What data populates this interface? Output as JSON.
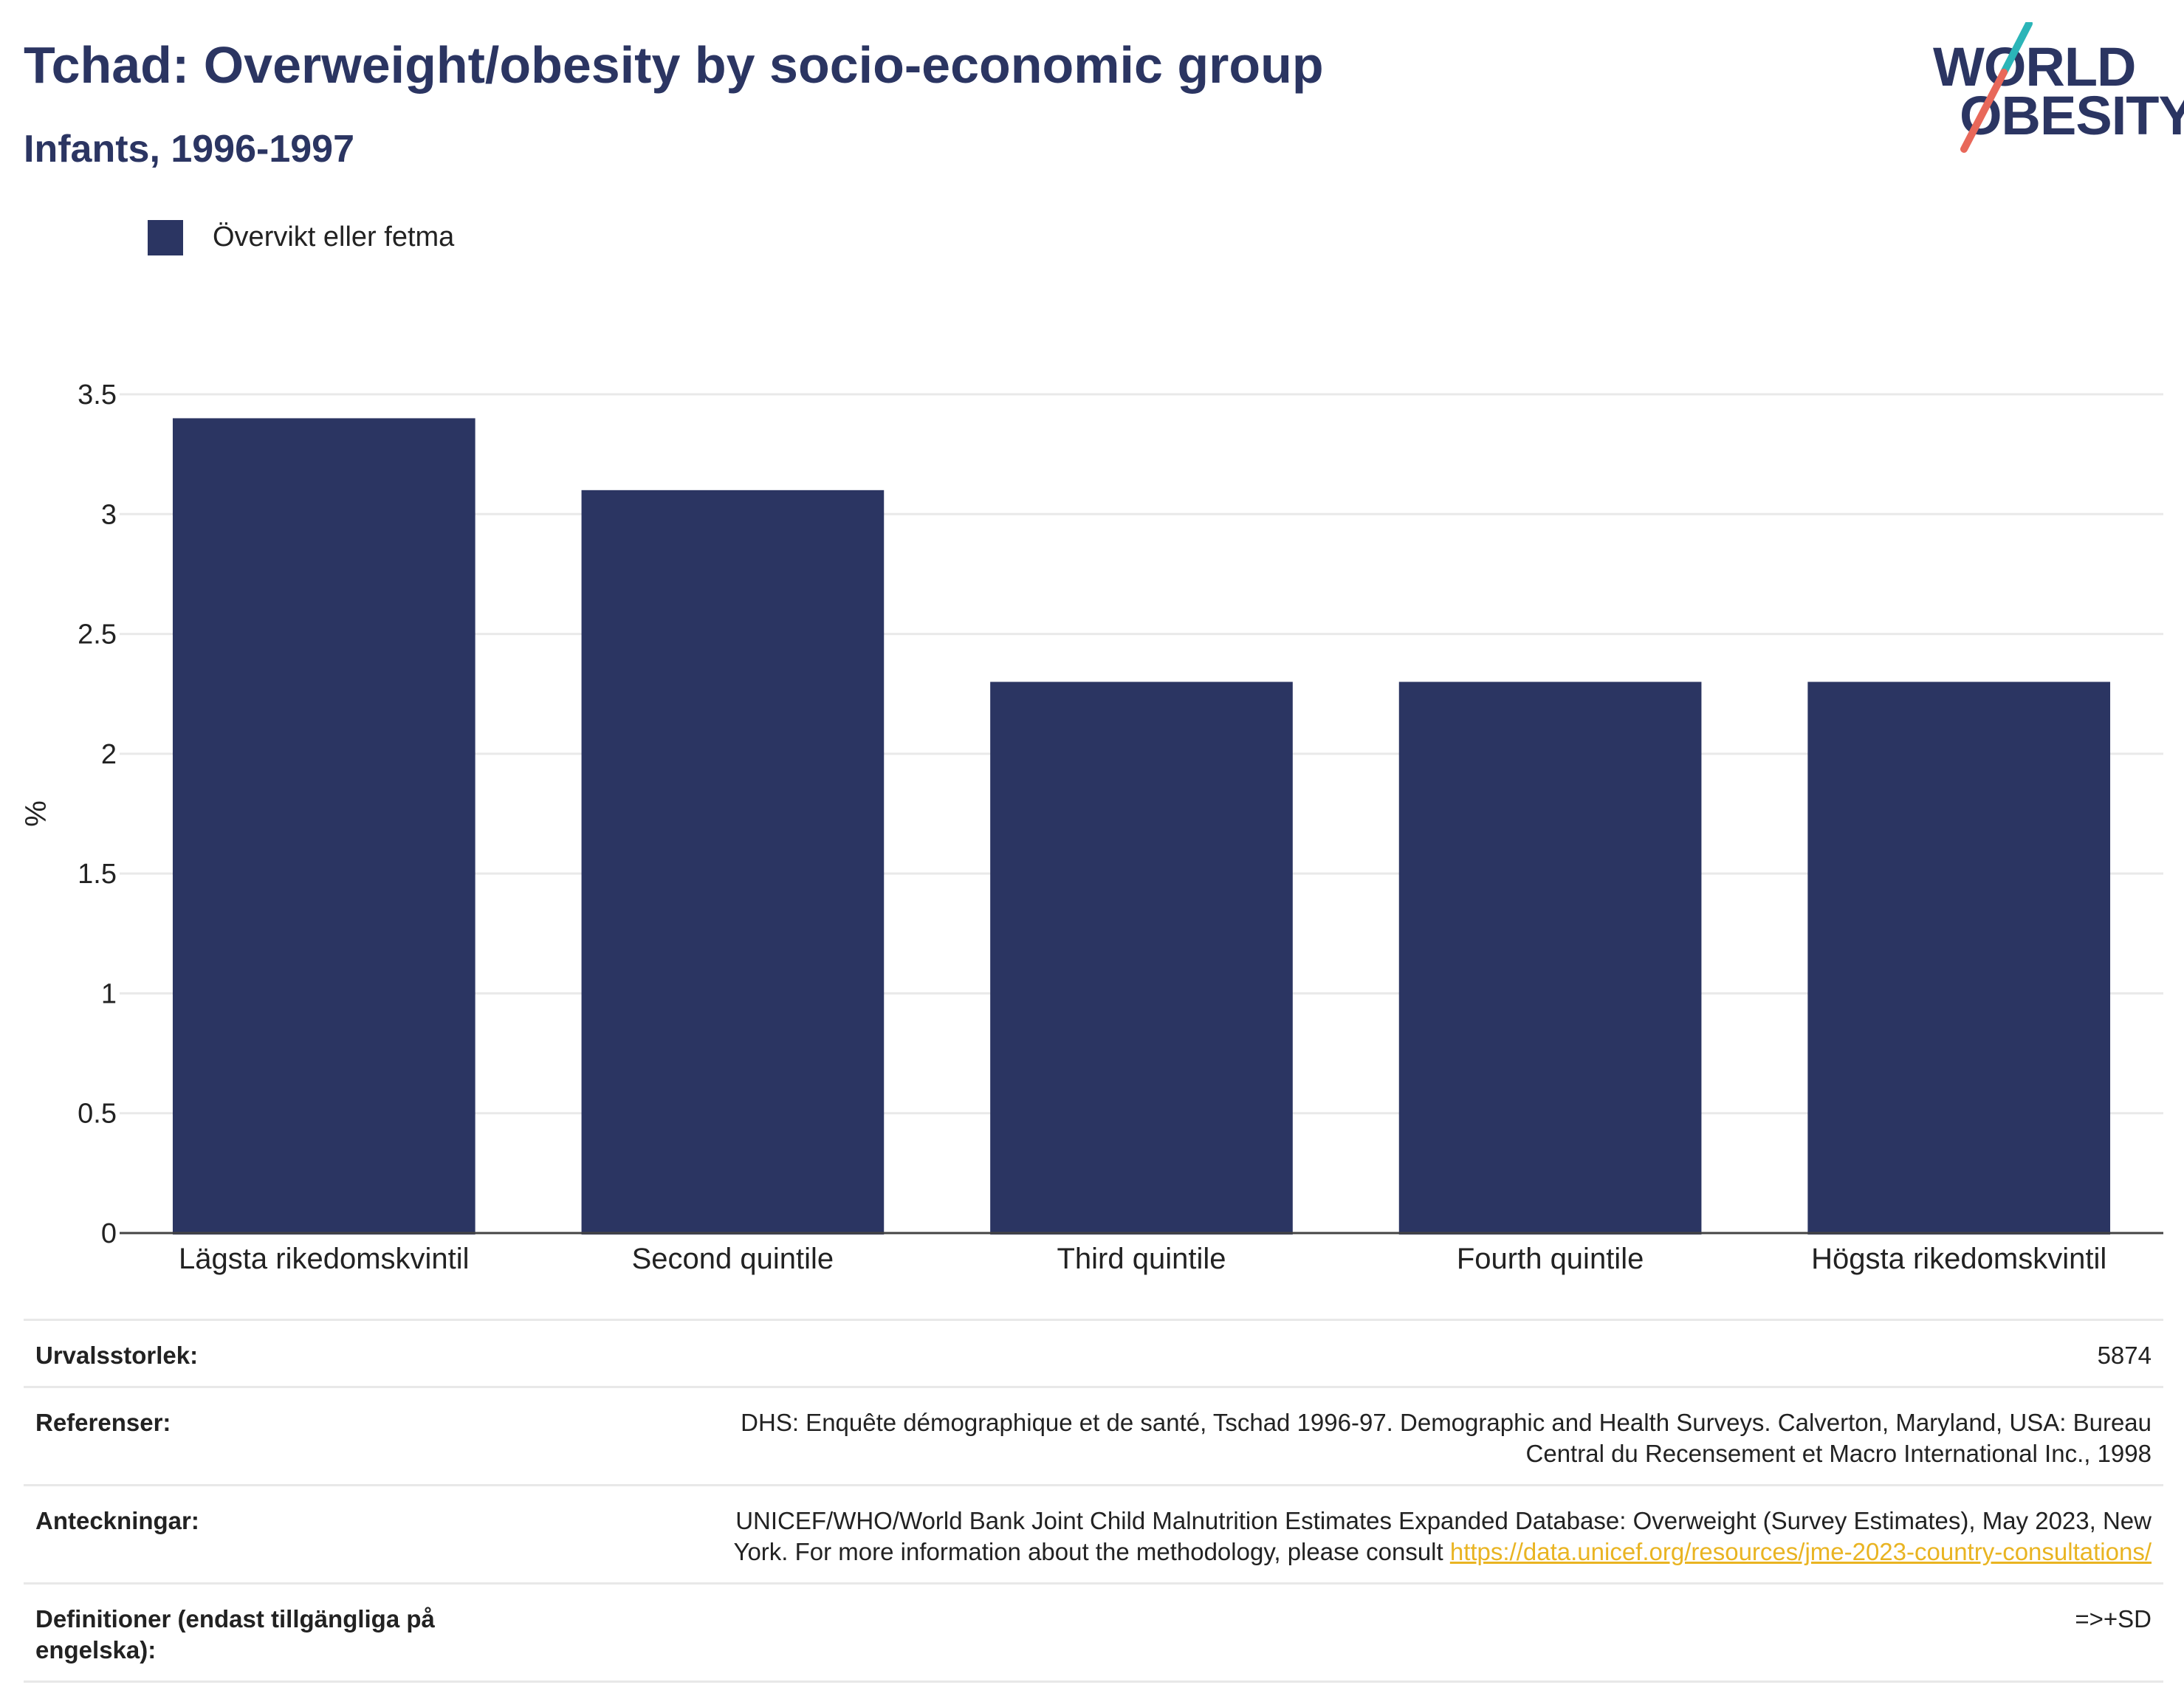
{
  "header": {
    "title": "Tchad: Overweight/obesity by socio-economic group",
    "subtitle": "Infants, 1996-1997"
  },
  "logo": {
    "line1": "WORLD",
    "line2": "OBESITY",
    "colors": {
      "text": "#2b3562",
      "slash_top": "#2bb5b8",
      "slash_bottom": "#e8685a"
    }
  },
  "legend": {
    "label": "Övervikt eller fetma",
    "color": "#2b3562"
  },
  "chart_data": {
    "type": "bar",
    "categories": [
      "Lägsta rikedomskvintil",
      "Second quintile",
      "Third quintile",
      "Fourth quintile",
      "Högsta rikedomskvintil"
    ],
    "series": [
      {
        "name": "Övervikt eller fetma",
        "values": [
          3.4,
          3.1,
          2.3,
          2.3,
          2.3
        ],
        "color": "#2b3562"
      }
    ],
    "ylabel": "%",
    "xlabel": "",
    "ylim": [
      0,
      3.5
    ],
    "yticks": [
      0,
      0.5,
      1,
      1.5,
      2,
      2.5,
      3,
      3.5
    ],
    "ytick_labels": [
      "0",
      "0.5",
      "1",
      "1.5",
      "2",
      "2.5",
      "3",
      "3.5"
    ],
    "grid": true,
    "legend_position": "top-left"
  },
  "info": {
    "sample_label": "Urvalsstorlek:",
    "sample_value": "5874",
    "references_label": "Referenser:",
    "references_line1": "DHS: Enquête démographique et de santé, Tschad 1996-97. Demographic and Health Surveys. Calverton, Maryland, USA: Bureau",
    "references_line2": "Central du Recensement et Macro International Inc., 1998",
    "notes_label": "Anteckningar:",
    "notes_line1": "UNICEF/WHO/World Bank Joint Child Malnutrition Estimates Expanded Database: Overweight (Survey Estimates), May 2023, New",
    "notes_line2": "York. For more information about the methodology, please consult ",
    "notes_link": "https://data.unicef.org/resources/jme-2023-country-consultations/",
    "definitions_label_line1": "Definitioner (endast tillgängliga på",
    "definitions_label_line2": "engelska):",
    "definitions_value": "=>+SD"
  }
}
